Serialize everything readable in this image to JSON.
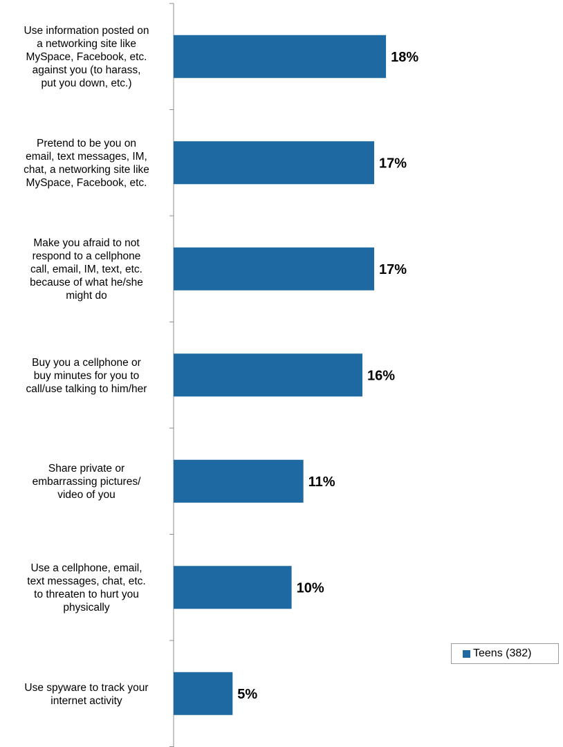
{
  "chart_data": {
    "type": "bar",
    "orientation": "horizontal",
    "categories": [
      "Use information posted on a networking site like MySpace, Facebook, etc. against you (to harass, put you down, etc.)",
      "Pretend to be you on email, text messages, IM, chat, a networking site like MySpace, Facebook, etc.",
      "Make you afraid to not respond to a cellphone call, email, IM, text, etc. because of what he/she might do",
      "Buy you a cellphone or buy minutes for you to call/use talking to him/her",
      "Share private or embarrassing pictures/ video of you",
      "Use a cellphone, email, text messages, chat, etc. to threaten to hurt you physically",
      "Use spyware to track your internet activity"
    ],
    "category_lines": [
      [
        "Use information posted on",
        "a networking site like",
        "MySpace, Facebook, etc.",
        "against you (to harass,",
        "put you down, etc.)"
      ],
      [
        "Pretend to be you on",
        "email, text messages, IM,",
        "chat, a networking site like",
        "MySpace, Facebook, etc."
      ],
      [
        "Make you afraid to not",
        "respond to a cellphone",
        "call, email, IM, text, etc.",
        "because of what he/she",
        "might do"
      ],
      [
        "Buy you a cellphone or",
        "buy minutes for you to",
        "call/use talking to him/her"
      ],
      [
        "Share private or",
        "embarrassing pictures/",
        "video of you"
      ],
      [
        "Use a cellphone, email,",
        "text messages, chat, etc.",
        "to threaten to hurt you",
        "physically"
      ],
      [
        "Use spyware to track your",
        "internet activity"
      ]
    ],
    "series": [
      {
        "name": "Teens (382)",
        "values": [
          18,
          17,
          17,
          16,
          11,
          10,
          5
        ],
        "labels": [
          "18%",
          "17%",
          "17%",
          "16%",
          "11%",
          "10%",
          "5%"
        ],
        "color": "#1f69a3"
      }
    ],
    "xlim": [
      0,
      33
    ],
    "legend_position": "bottom-right",
    "grid": false
  }
}
